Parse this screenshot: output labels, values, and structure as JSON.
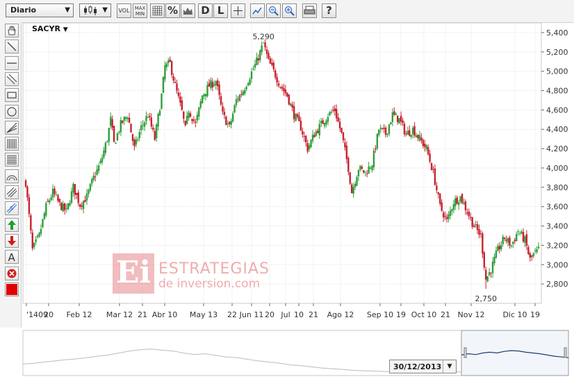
{
  "toolbar": {
    "period_select": "Diario",
    "chart_type_icon": "candlestick-icon",
    "buttons": [
      {
        "name": "volume-button",
        "label": "VOL"
      },
      {
        "name": "maxmin-button",
        "label": "MAX MIN"
      },
      {
        "name": "grid-button",
        "label": ""
      },
      {
        "name": "percent-button",
        "label": "%"
      },
      {
        "name": "compare-button",
        "label": ""
      },
      {
        "name": "daily-button",
        "label": "D"
      },
      {
        "name": "linear-button",
        "label": "L"
      },
      {
        "name": "crosshair-button",
        "label": ""
      },
      {
        "name": "zoom-button",
        "label": ""
      },
      {
        "name": "zoom-out-button",
        "label": ""
      },
      {
        "name": "zoom-in-button",
        "label": ""
      },
      {
        "name": "print-button",
        "label": ""
      },
      {
        "name": "help-button",
        "label": "?"
      }
    ]
  },
  "drawing_tools": [
    "hand-icon",
    "line-icon",
    "horizontal-line-icon",
    "parallel-lines-icon",
    "rectangle-icon",
    "circle-icon",
    "fan-icon",
    "fibonacci-icon",
    "retracement-icon",
    "arc-icon",
    "channel-icon",
    "speed-lines-icon",
    "buy-arrow-icon",
    "sell-arrow-icon",
    "text-icon",
    "delete-icon",
    "color-picker-icon"
  ],
  "colors": {
    "up": "#2e9e3a",
    "down": "#c8202d",
    "grid": "#d9d9d9",
    "navigator_line": "#1e3d6e",
    "draw_color": "#e00000"
  },
  "watermark": {
    "line1": "ESTRATEGIAS",
    "line2": "de inversion.com",
    "mark": "Ei"
  },
  "navigator": {
    "date": "30/12/2013"
  },
  "chart_data": {
    "type": "candlestick",
    "ticker": "SACYR",
    "ylim": [
      2.6,
      5.5
    ],
    "y_ticks": [
      "5,400",
      "5,200",
      "5,000",
      "4,800",
      "4,600",
      "4,400",
      "4,200",
      "4,000",
      "3,800",
      "3,600",
      "3,400",
      "3,200",
      "3,000",
      "2,800"
    ],
    "x_ticks": [
      "'1409",
      "20",
      "Feb 12",
      "Mar 12",
      "21",
      "Abr 10",
      "May 13",
      "22",
      "Jun 11",
      "20",
      "Jul",
      "10",
      "21",
      "Ago 12",
      "Sep 10",
      "19",
      "Oct 10",
      "21",
      "Nov 12",
      "Dic 10",
      "19"
    ],
    "annotations": [
      {
        "label": "5,290",
        "value": 5.29,
        "type": "max"
      },
      {
        "label": "2,750",
        "value": 2.75,
        "type": "min"
      }
    ],
    "close_path": [
      [
        0,
        3.85
      ],
      [
        4,
        3.15
      ],
      [
        8,
        3.3
      ],
      [
        12,
        3.6
      ],
      [
        16,
        3.75
      ],
      [
        20,
        3.62
      ],
      [
        24,
        3.55
      ],
      [
        28,
        3.8
      ],
      [
        32,
        3.62
      ],
      [
        36,
        3.7
      ],
      [
        40,
        3.9
      ],
      [
        44,
        4.05
      ],
      [
        48,
        4.3
      ],
      [
        50,
        4.5
      ],
      [
        52,
        4.25
      ],
      [
        56,
        4.45
      ],
      [
        60,
        4.55
      ],
      [
        64,
        4.2
      ],
      [
        68,
        4.42
      ],
      [
        72,
        4.55
      ],
      [
        76,
        4.3
      ],
      [
        80,
        4.75
      ],
      [
        82,
        5.05
      ],
      [
        85,
        5.08
      ],
      [
        88,
        4.85
      ],
      [
        92,
        4.58
      ],
      [
        94,
        4.4
      ],
      [
        96,
        4.6
      ],
      [
        100,
        4.45
      ],
      [
        104,
        4.75
      ],
      [
        108,
        4.85
      ],
      [
        112,
        4.9
      ],
      [
        116,
        4.55
      ],
      [
        120,
        4.42
      ],
      [
        124,
        4.7
      ],
      [
        128,
        4.8
      ],
      [
        132,
        4.95
      ],
      [
        136,
        5.1
      ],
      [
        140,
        5.29
      ],
      [
        143,
        5.1
      ],
      [
        146,
        5.0
      ],
      [
        150,
        4.85
      ],
      [
        154,
        4.75
      ],
      [
        158,
        4.55
      ],
      [
        162,
        4.42
      ],
      [
        166,
        4.2
      ],
      [
        170,
        4.35
      ],
      [
        174,
        4.45
      ],
      [
        178,
        4.55
      ],
      [
        182,
        4.6
      ],
      [
        186,
        4.35
      ],
      [
        190,
        4.0
      ],
      [
        192,
        3.75
      ],
      [
        196,
        4.0
      ],
      [
        200,
        3.95
      ],
      [
        204,
        4.05
      ],
      [
        208,
        4.4
      ],
      [
        212,
        4.35
      ],
      [
        216,
        4.55
      ],
      [
        220,
        4.5
      ],
      [
        224,
        4.35
      ],
      [
        228,
        4.4
      ],
      [
        232,
        4.3
      ],
      [
        236,
        4.2
      ],
      [
        240,
        3.95
      ],
      [
        244,
        3.6
      ],
      [
        248,
        3.45
      ],
      [
        252,
        3.65
      ],
      [
        256,
        3.7
      ],
      [
        260,
        3.55
      ],
      [
        264,
        3.4
      ],
      [
        268,
        3.3
      ],
      [
        271,
        2.85
      ],
      [
        274,
        2.95
      ],
      [
        278,
        3.15
      ],
      [
        282,
        3.28
      ],
      [
        286,
        3.2
      ],
      [
        290,
        3.35
      ],
      [
        294,
        3.25
      ],
      [
        297,
        3.05
      ],
      [
        299,
        3.1
      ],
      [
        302,
        3.15
      ]
    ],
    "navigator_history": [
      0.22,
      0.24,
      0.27,
      0.3,
      0.33,
      0.35,
      0.38,
      0.42,
      0.45,
      0.5,
      0.55,
      0.58,
      0.6,
      0.57,
      0.55,
      0.5,
      0.46,
      0.48,
      0.44,
      0.4,
      0.38,
      0.34,
      0.3,
      0.27,
      0.24,
      0.2,
      0.18,
      0.15,
      0.12,
      0.1,
      0.08,
      0.06,
      0.05,
      0.04,
      0.03,
      0.03,
      0.02,
      0.02,
      0.03,
      0.02,
      0.03,
      0.02
    ],
    "navigator_recent": [
      0.45,
      0.48,
      0.46,
      0.5,
      0.52,
      0.5,
      0.54,
      0.56,
      0.55,
      0.52,
      0.5,
      0.48,
      0.45,
      0.42,
      0.4,
      0.38
    ]
  }
}
